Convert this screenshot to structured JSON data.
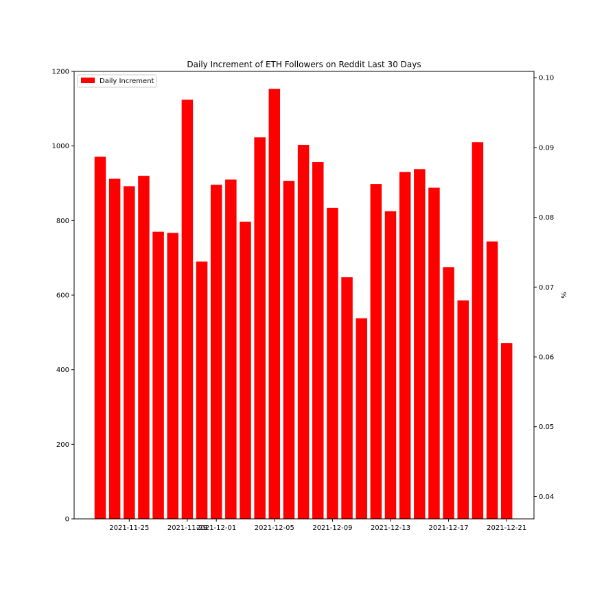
{
  "chart_data": {
    "type": "bar",
    "title": "Daily Increment of ETH Followers on Reddit Last 30 Days",
    "xlabel": "",
    "ylabel": "",
    "ylabel_right": "%",
    "legend": {
      "placement": "upper-left",
      "entries": [
        "Daily Increment"
      ]
    },
    "bar_color": "#ff0000",
    "grid": false,
    "ylim": [
      0,
      1200
    ],
    "yticks": [
      0,
      200,
      400,
      600,
      800,
      1000,
      1200
    ],
    "ylim_right": [
      0.0368,
      0.1009
    ],
    "yticks_right": [
      "0.04",
      "0.05",
      "0.06",
      "0.07",
      "0.08",
      "0.09",
      "0.10"
    ],
    "xticks": [
      "2021-11-25",
      "2021-11-29",
      "2021-12-01",
      "2021-12-05",
      "2021-12-09",
      "2021-12-13",
      "2021-12-17",
      "2021-12-21"
    ],
    "dates": [
      "2021-11-23",
      "2021-11-24",
      "2021-11-25",
      "2021-11-26",
      "2021-11-27",
      "2021-11-28",
      "2021-11-29",
      "2021-11-30",
      "2021-12-01",
      "2021-12-02",
      "2021-12-03",
      "2021-12-04",
      "2021-12-05",
      "2021-12-06",
      "2021-12-07",
      "2021-12-08",
      "2021-12-09",
      "2021-12-10",
      "2021-12-11",
      "2021-12-12",
      "2021-12-13",
      "2021-12-14",
      "2021-12-15",
      "2021-12-16",
      "2021-12-17",
      "2021-12-18",
      "2021-12-19",
      "2021-12-20",
      "2021-12-21"
    ],
    "series": [
      {
        "name": "Daily Increment",
        "values": [
          971,
          912,
          892,
          920,
          770,
          767,
          1124,
          690,
          896,
          910,
          797,
          1023,
          1153,
          906,
          1003,
          957,
          834,
          648,
          538,
          898,
          825,
          930,
          938,
          888,
          675,
          586,
          1010,
          744,
          471
        ]
      }
    ]
  }
}
